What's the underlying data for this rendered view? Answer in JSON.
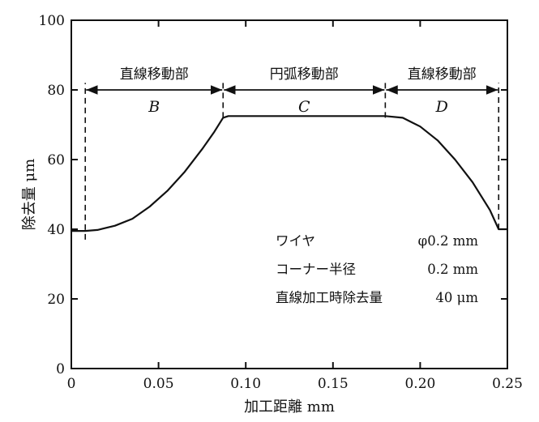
{
  "chart_data": {
    "type": "line",
    "title": "",
    "xlabel": "加工距離 mm",
    "ylabel": "除去量 μm",
    "xlim": [
      0,
      0.25
    ],
    "ylim": [
      0,
      100
    ],
    "x_ticks": [
      0,
      0.05,
      0.1,
      0.15,
      0.2,
      0.25
    ],
    "x_tick_labels": [
      "0",
      "0.05",
      "0.10",
      "0.15",
      "0.20",
      "0.25"
    ],
    "y_ticks": [
      0,
      20,
      40,
      60,
      80,
      100
    ],
    "y_tick_labels": [
      "0",
      "20",
      "40",
      "60",
      "80",
      "100"
    ],
    "grid": false,
    "legend": "none",
    "series": [
      {
        "x": [
          0,
          0.008,
          0.015,
          0.025,
          0.035,
          0.045,
          0.055,
          0.065,
          0.075,
          0.082,
          0.087,
          0.09,
          0.12,
          0.15,
          0.18,
          0.19,
          0.2,
          0.21,
          0.22,
          0.23,
          0.24,
          0.245,
          0.25
        ],
        "y": [
          39.5,
          39.5,
          39.8,
          41.0,
          43.0,
          46.5,
          51.0,
          56.5,
          63.0,
          68.0,
          72.0,
          72.5,
          72.5,
          72.5,
          72.5,
          72.0,
          69.5,
          65.5,
          60.0,
          53.5,
          45.5,
          40.0,
          40.0
        ],
        "color": "#111111"
      }
    ],
    "regions": [
      {
        "label": "直線移動部",
        "segment": "B",
        "x_start": 0.008,
        "x_end": 0.087
      },
      {
        "label": "円弧移動部",
        "segment": "C",
        "x_start": 0.087,
        "x_end": 0.18
      },
      {
        "label": "直線移動部",
        "segment": "D",
        "x_start": 0.18,
        "x_end": 0.245
      }
    ],
    "region_arrow_y": 80,
    "boundary_lines": [
      {
        "x": 0.008,
        "y_from": 37,
        "y_to": 82
      },
      {
        "x": 0.087,
        "y_from": 72,
        "y_to": 82
      },
      {
        "x": 0.18,
        "y_from": 72,
        "y_to": 82
      },
      {
        "x": 0.245,
        "y_from": 40,
        "y_to": 82
      }
    ],
    "annotations": [
      {
        "label": "ワイヤ",
        "value": "φ0.2 mm"
      },
      {
        "label": "コーナー半径",
        "value": "0.2 mm"
      },
      {
        "label": "直線加工時除去量",
        "value": "40 μm"
      }
    ]
  }
}
